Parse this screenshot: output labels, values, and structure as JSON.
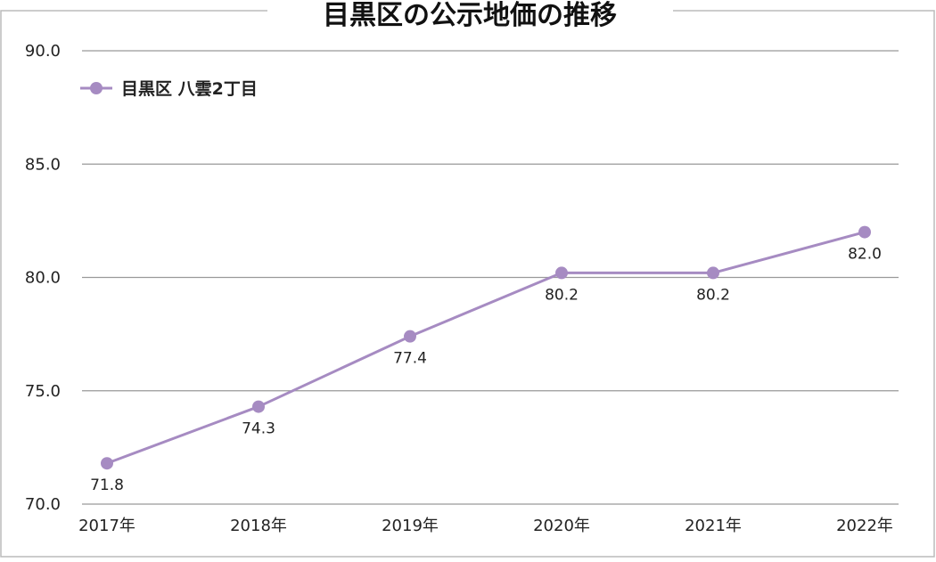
{
  "chart_data": {
    "type": "line",
    "title": "目黒区の公示地価の推移",
    "categories": [
      "2017年",
      "2018年",
      "2019年",
      "2020年",
      "2021年",
      "2022年"
    ],
    "series": [
      {
        "name": "目黒区 八雲2丁目",
        "values": [
          71.8,
          74.3,
          77.4,
          80.2,
          80.2,
          82.0
        ],
        "data_labels": [
          "71.8",
          "74.3",
          "77.4",
          "80.2",
          "80.2",
          "82.0"
        ]
      }
    ],
    "ylim": [
      70.0,
      90.0
    ],
    "yticks": [
      70.0,
      75.0,
      80.0,
      85.0,
      90.0
    ],
    "ytick_labels": [
      "70.0",
      "75.0",
      "80.0",
      "85.0",
      "90.0"
    ],
    "grid": true,
    "legend_position": "top-left",
    "colors": {
      "series": "#a68bc2",
      "grid": "#999999",
      "frame": "#bbbbbb"
    }
  }
}
